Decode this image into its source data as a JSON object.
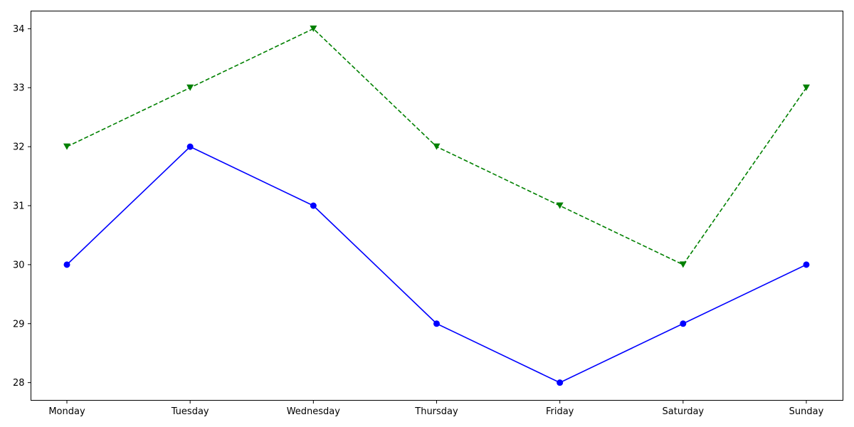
{
  "chart_data": {
    "type": "line",
    "title": "",
    "xlabel": "",
    "ylabel": "",
    "categories": [
      "Monday",
      "Tuesday",
      "Wednesday",
      "Thursday",
      "Friday",
      "Saturday",
      "Sunday"
    ],
    "ylim": [
      27.7,
      34.3
    ],
    "yticks": [
      28,
      29,
      30,
      31,
      32,
      33,
      34
    ],
    "grid": false,
    "legend": "none",
    "series": [
      {
        "values": [
          30,
          32,
          31,
          29,
          28,
          29,
          30
        ],
        "color": "#0000ff",
        "line_style": "solid",
        "marker": "circle"
      },
      {
        "values": [
          32,
          33,
          34,
          32,
          31,
          30,
          33
        ],
        "color": "#008000",
        "line_style": "dashed",
        "marker": "triangle-down"
      }
    ]
  }
}
